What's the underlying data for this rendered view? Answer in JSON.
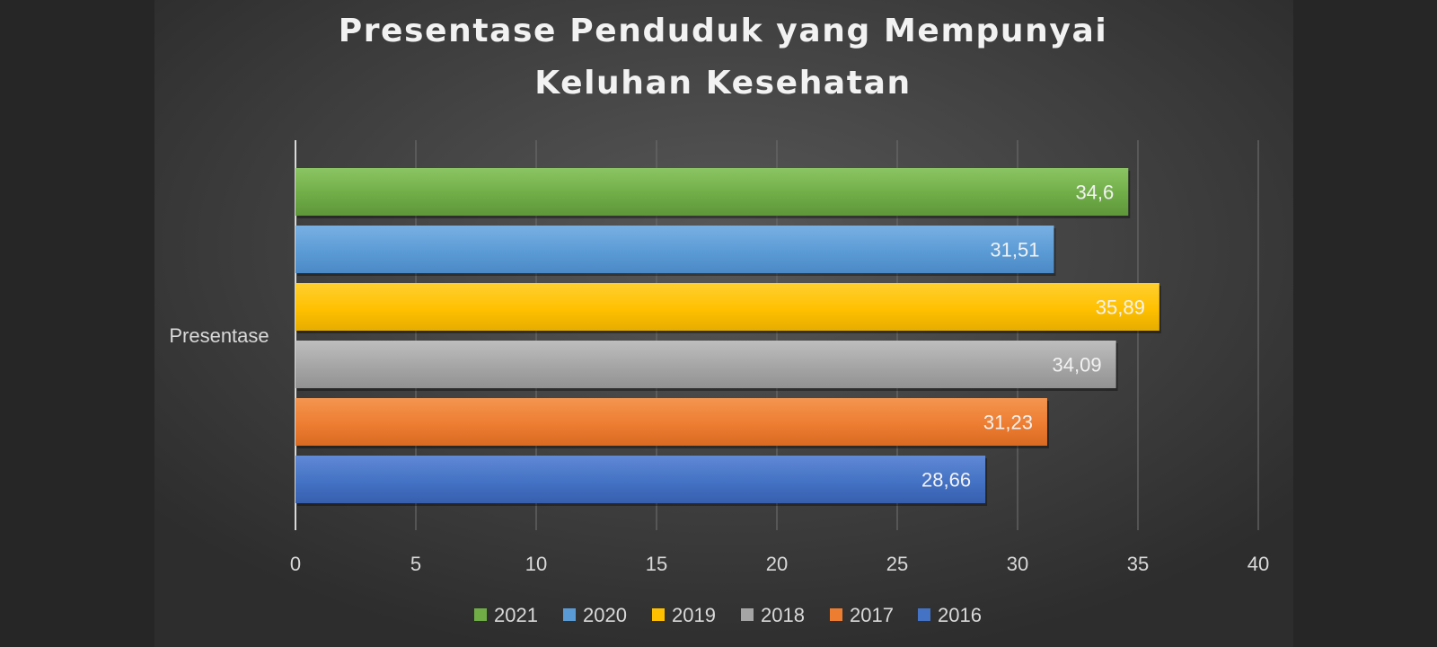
{
  "chart_data": {
    "type": "bar",
    "orientation": "horizontal",
    "title_lines": [
      "Presentase Penduduk yang Mempunyai",
      "Keluhan Kesehatan"
    ],
    "category_label": "Presentase",
    "xlim": [
      0,
      40
    ],
    "x_ticks": [
      "0",
      "5",
      "10",
      "15",
      "20",
      "25",
      "30",
      "35",
      "40"
    ],
    "grid": "vertical",
    "legend_position": "bottom",
    "series": [
      {
        "name": "2021",
        "value": 34.6,
        "label": "34,6",
        "color": "#70AD47",
        "color_light": "#8BC564",
        "color_dark": "#5E963A"
      },
      {
        "name": "2020",
        "value": 31.51,
        "label": "31,51",
        "color": "#5B9BD5",
        "color_light": "#79B0E3",
        "color_dark": "#4B89C6"
      },
      {
        "name": "2019",
        "value": 35.89,
        "label": "35,89",
        "color": "#FFC000",
        "color_light": "#FFD030",
        "color_dark": "#E6AD00"
      },
      {
        "name": "2018",
        "value": 34.09,
        "label": "34,09",
        "color": "#A5A5A5",
        "color_light": "#BEBEBE",
        "color_dark": "#929292"
      },
      {
        "name": "2017",
        "value": 31.23,
        "label": "31,23",
        "color": "#ED7D31",
        "color_light": "#F49550",
        "color_dark": "#D86A22"
      },
      {
        "name": "2016",
        "value": 28.66,
        "label": "28,66",
        "color": "#4472C4",
        "color_light": "#6189D6",
        "color_dark": "#375FAE"
      }
    ]
  }
}
